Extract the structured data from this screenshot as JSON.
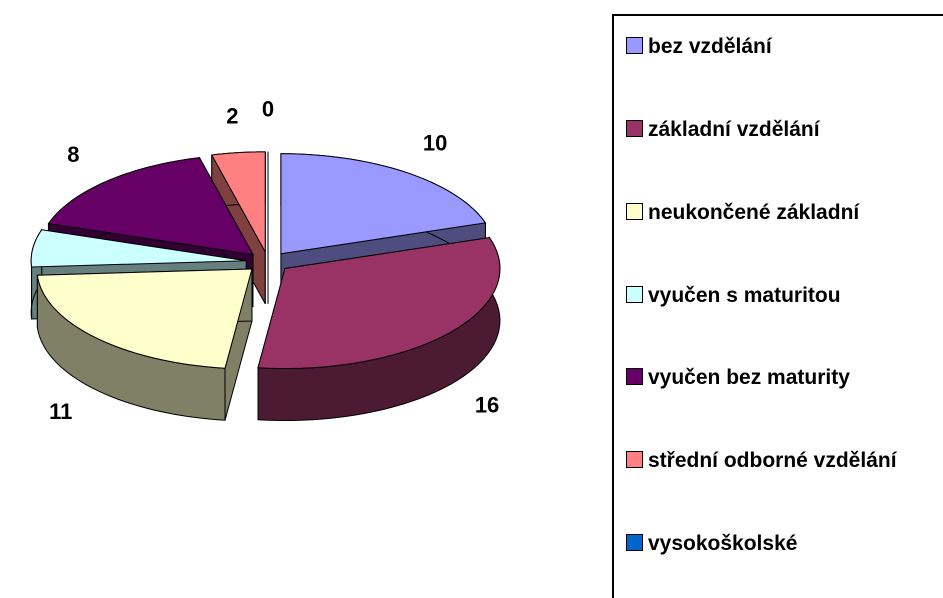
{
  "chart_data": {
    "type": "pie",
    "three_d": true,
    "exploded": true,
    "categories": [
      "bez vzdělání",
      "základní vzdělání",
      "neukončené základní",
      "vyučen s maturitou",
      "vyučen bez maturity",
      "střední odborné vzdělání",
      "vysokoškolské"
    ],
    "values": [
      10,
      16,
      11,
      3,
      8,
      2,
      0
    ],
    "colors": [
      "#9999ff",
      "#993366",
      "#ffffcc",
      "#ccffff",
      "#660066",
      "#ff8080",
      "#0066cc"
    ],
    "legend": "right"
  }
}
